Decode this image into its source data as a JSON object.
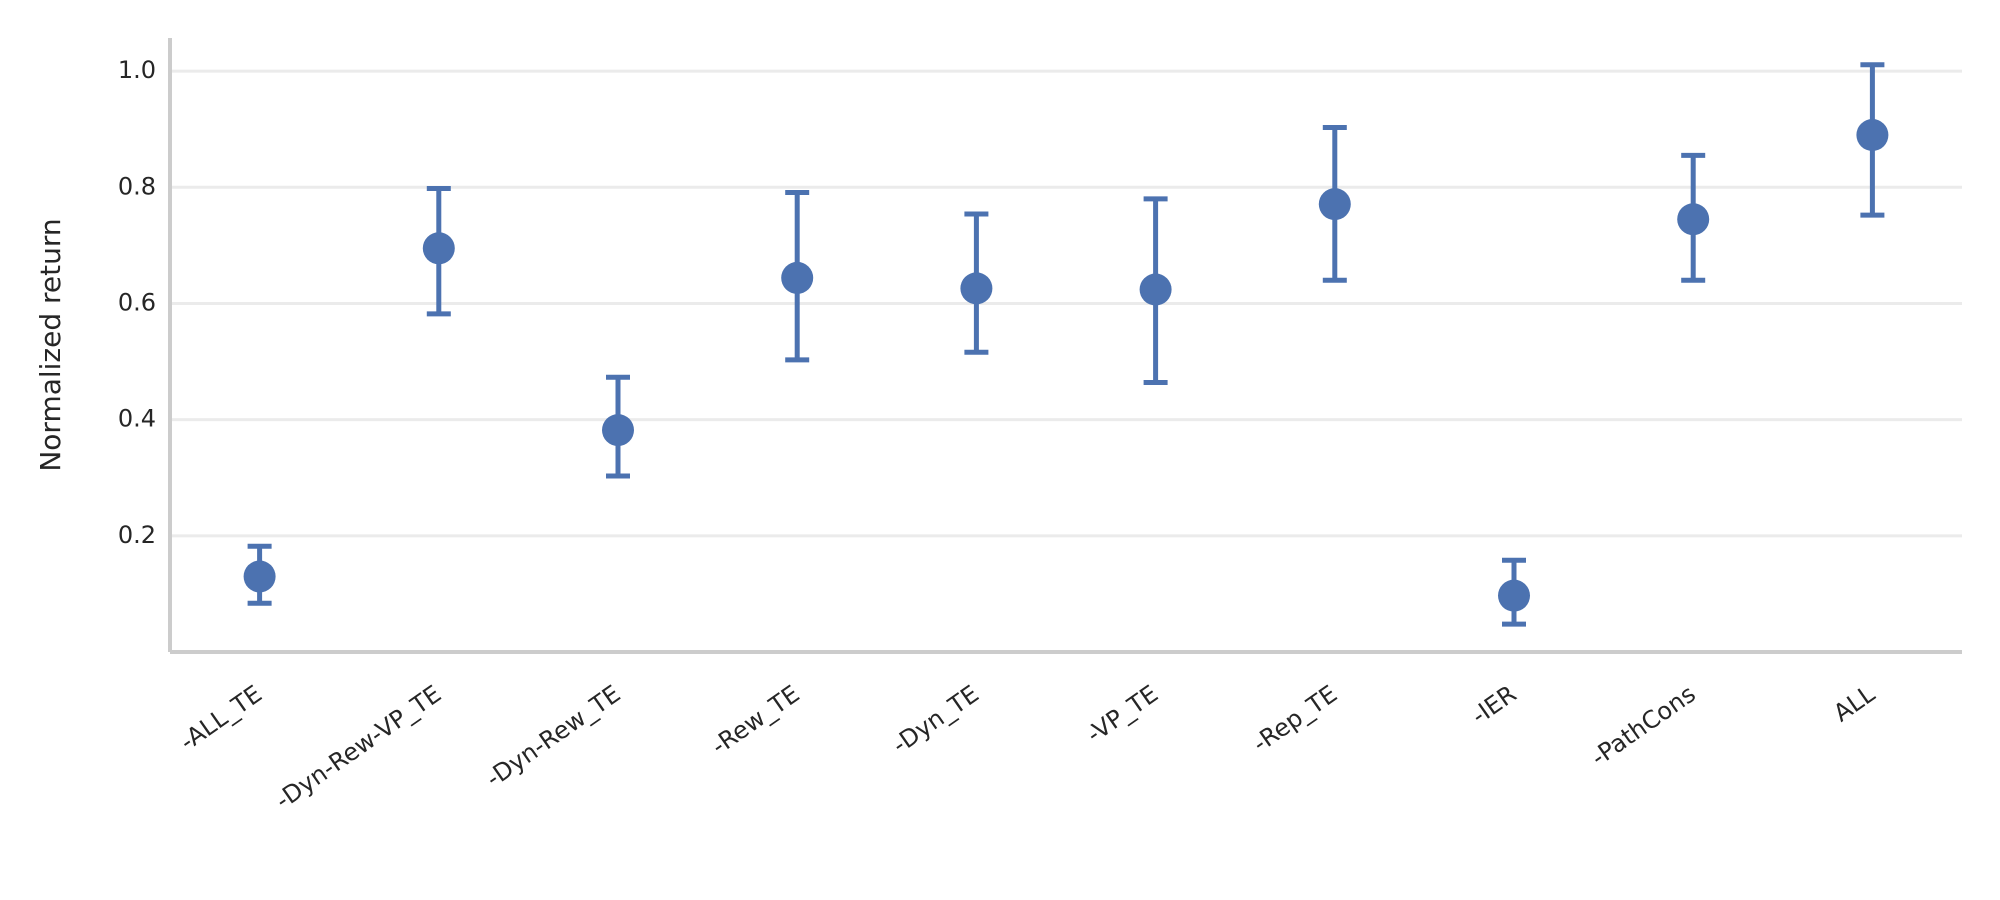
{
  "chart_data": {
    "type": "pointplot",
    "y_label": "Normalized return",
    "categories": [
      "-ALL_TE",
      "-Dyn-Rew-VP_TE",
      "-Dyn-Rew_TE",
      "-Rew_TE",
      "-Dyn_TE",
      "-VP_TE",
      "-Rep_TE",
      "-IER",
      "-PathCons",
      "ALL"
    ],
    "series": [
      {
        "color": "#4c72b0",
        "values": [
          0.13,
          0.695,
          0.382,
          0.644,
          0.626,
          0.624,
          0.771,
          0.097,
          0.745,
          0.89
        ],
        "ci_low": [
          0.084,
          0.582,
          0.303,
          0.503,
          0.516,
          0.464,
          0.64,
          0.048,
          0.64,
          0.752
        ],
        "ci_high": [
          0.182,
          0.798,
          0.473,
          0.791,
          0.754,
          0.78,
          0.903,
          0.158,
          0.855,
          1.011
        ]
      }
    ],
    "ylim": [
      0,
      1.057
    ],
    "yticks": [
      0.2,
      0.4,
      0.6,
      0.8,
      {
        "value": 1,
        "label": "1.0"
      }
    ],
    "grid": true
  }
}
